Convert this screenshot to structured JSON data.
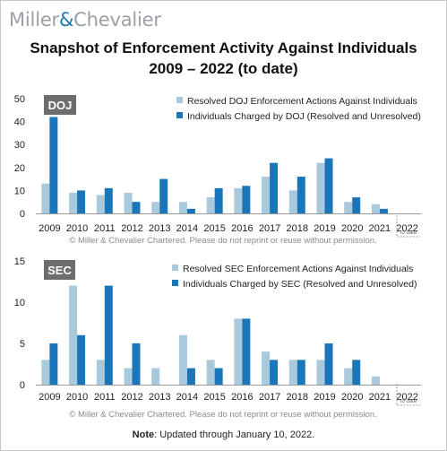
{
  "brand": {
    "name_left": "Miller",
    "amp": "&",
    "name_right": "Chevalier"
  },
  "title_line1": "Snapshot of Enforcement Activity Against Individuals",
  "title_line2": "2009 – 2022 (to date)",
  "note": {
    "label": "Note",
    "text": ": Updated through January 10, 2022."
  },
  "colors": {
    "light": "#a9c9dc",
    "dark": "#1a76b8",
    "badge": "#6d6d6d",
    "axis": "#9a9a9a"
  },
  "chart_data": [
    {
      "type": "bar",
      "badge": "DOJ",
      "categories": [
        "2009",
        "2010",
        "2011",
        "2012",
        "2013",
        "2014",
        "2015",
        "2016",
        "2017",
        "2018",
        "2019",
        "2020",
        "2021",
        "2022"
      ],
      "yticks": [
        0,
        10,
        20,
        30,
        40,
        50
      ],
      "ylim": [
        0,
        50
      ],
      "series": [
        {
          "name": "Resolved DOJ Enforcement Actions Against Individuals",
          "values": [
            13,
            9,
            8,
            9,
            5,
            5,
            7,
            11,
            16,
            10,
            22,
            5,
            4,
            0
          ]
        },
        {
          "name": "Individuals Charged by DOJ (Resolved and Unresolved)",
          "values": [
            42,
            10,
            11,
            5,
            15,
            2,
            11,
            12,
            22,
            16,
            24,
            7,
            2,
            0
          ]
        }
      ],
      "annotation": "to date",
      "copyright": "© Miller & Chevalier Chartered. Please do not reprint or reuse without permission."
    },
    {
      "type": "bar",
      "badge": "SEC",
      "categories": [
        "2009",
        "2010",
        "2011",
        "2012",
        "2013",
        "2014",
        "2015",
        "2016",
        "2017",
        "2018",
        "2019",
        "2020",
        "2021",
        "2022"
      ],
      "yticks": [
        0,
        5,
        10,
        15
      ],
      "ylim": [
        0,
        15
      ],
      "series": [
        {
          "name": "Resolved SEC Enforcement Actions Against Individuals",
          "values": [
            3,
            12,
            3,
            2,
            2,
            6,
            3,
            8,
            4,
            3,
            3,
            2,
            1,
            0
          ]
        },
        {
          "name": "Individuals Charged by SEC (Resolved and Unresolved)",
          "values": [
            5,
            6,
            12,
            5,
            0,
            2,
            2,
            8,
            3,
            3,
            5,
            3,
            0,
            0
          ]
        }
      ],
      "annotation": "to date",
      "copyright": "© Miller & Chevalier Chartered. Please do not reprint or reuse without permission."
    }
  ]
}
